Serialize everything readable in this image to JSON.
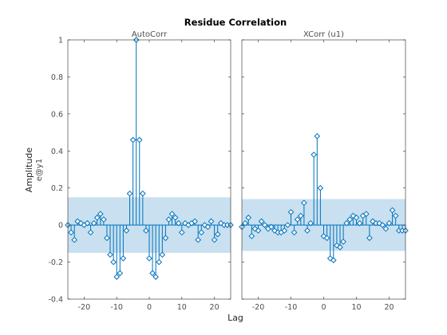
{
  "chart_data": {
    "type": "stem",
    "title": "Residue Correlation",
    "xlabel": "Lag",
    "ylabel": "Amplitude",
    "ylabel_sub": "e@y1",
    "xlim": [
      -25,
      25
    ],
    "ylim": [
      -0.4,
      1
    ],
    "xticks": [
      -20,
      -10,
      0,
      10,
      20
    ],
    "yticks": [
      -0.4,
      -0.2,
      0,
      0.2,
      0.4,
      0.6,
      0.8,
      1
    ],
    "ytick_labels": [
      "-0.4",
      "-0.2",
      "0",
      "0.2",
      "0.4",
      "0.6",
      "0.8",
      "1"
    ],
    "grid": false,
    "colors": {
      "stem": "#0072bd",
      "band": "#c8e0f0",
      "axis": "#262626",
      "tick_text": "#4d4d4d"
    },
    "panels": [
      {
        "title": "AutoCorr",
        "confidence_band": [
          -0.15,
          0.15
        ],
        "x": [
          -25,
          -24,
          -23,
          -22,
          -21,
          -20,
          -19,
          -18,
          -17,
          -16,
          -15,
          -14,
          -13,
          -12,
          -11,
          -10,
          -9,
          -8,
          -7,
          -6,
          -5,
          -4,
          -3,
          -2,
          -1,
          0,
          1,
          2,
          3,
          4,
          5,
          6,
          7,
          8,
          9,
          10,
          11,
          12,
          13,
          14,
          15,
          16,
          17,
          18,
          19,
          20,
          21,
          22,
          23,
          24,
          25
        ],
        "values": [
          0.0,
          -0.04,
          -0.08,
          0.02,
          0.01,
          0.0,
          0.01,
          -0.04,
          0.01,
          0.04,
          0.06,
          0.03,
          -0.07,
          -0.16,
          -0.2,
          -0.28,
          -0.26,
          -0.18,
          -0.03,
          0.17,
          0.46,
          1.0,
          0.46,
          0.17,
          -0.03,
          -0.18,
          -0.26,
          -0.28,
          -0.2,
          -0.16,
          -0.07,
          0.03,
          0.06,
          0.04,
          0.01,
          -0.04,
          0.01,
          0.0,
          0.01,
          0.02,
          -0.08,
          -0.04,
          0.0,
          -0.01,
          0.02,
          -0.08,
          -0.05,
          0.01,
          0.0,
          0.0,
          0.0
        ]
      },
      {
        "title": "XCorr (u1)",
        "confidence_band": [
          -0.14,
          0.14
        ],
        "x": [
          -25,
          -24,
          -23,
          -22,
          -21,
          -20,
          -19,
          -18,
          -17,
          -16,
          -15,
          -14,
          -13,
          -12,
          -11,
          -10,
          -9,
          -8,
          -7,
          -6,
          -5,
          -4,
          -3,
          -2,
          -1,
          0,
          1,
          2,
          3,
          4,
          5,
          6,
          7,
          8,
          9,
          10,
          11,
          12,
          13,
          14,
          15,
          16,
          17,
          18,
          19,
          20,
          21,
          22,
          23,
          24,
          25
        ],
        "values": [
          -0.01,
          0.01,
          0.04,
          -0.06,
          -0.02,
          -0.03,
          0.02,
          0.0,
          -0.02,
          -0.01,
          -0.03,
          -0.04,
          -0.04,
          -0.03,
          0.0,
          0.07,
          -0.04,
          0.03,
          0.05,
          0.12,
          -0.03,
          0.01,
          0.38,
          0.48,
          0.2,
          -0.06,
          -0.07,
          -0.18,
          -0.19,
          -0.11,
          -0.12,
          -0.09,
          0.01,
          0.03,
          0.05,
          0.04,
          0.01,
          0.05,
          0.06,
          -0.07,
          0.02,
          0.01,
          0.01,
          0.0,
          -0.02,
          0.01,
          0.08,
          0.05,
          -0.03,
          -0.03,
          -0.03
        ]
      }
    ]
  }
}
